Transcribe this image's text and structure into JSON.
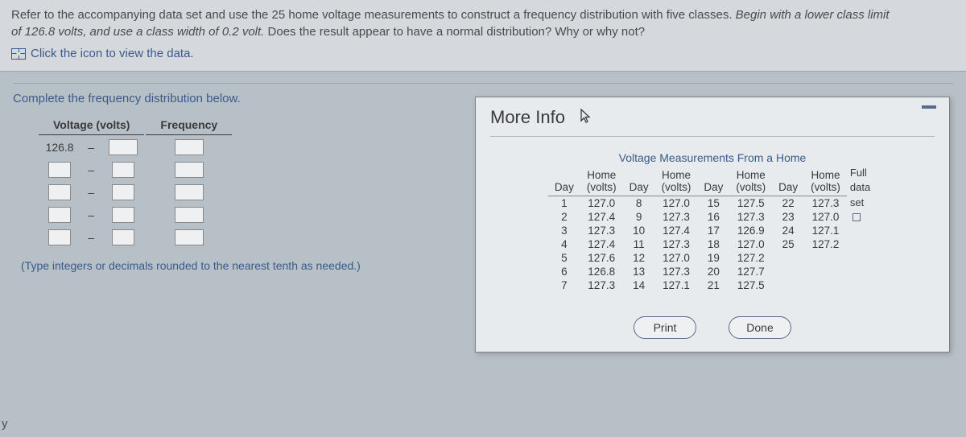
{
  "question": {
    "line1_a": "Refer to the accompanying data set and use the 25 home voltage measurements to construct a frequency distribution with five classes. ",
    "line1_italic": "Begin with a lower class limit",
    "line2_italic": "of 126.8 volts, and use a class width of 0.2 volt.",
    "line2_b": " Does the result appear to have a normal distribution? Why or why not?",
    "link_text": "Click the icon to view the data."
  },
  "section": {
    "title": "Complete the frequency distribution below.",
    "col1": "Voltage (volts)",
    "col2": "Frequency",
    "first_lower": "126.8",
    "dash": "–",
    "hint": "(Type integers or decimals rounded to the nearest tenth as needed.)"
  },
  "dialog": {
    "title": "More Info",
    "caption": "Voltage Measurements From a Home",
    "head_day": "Day",
    "head_volts_html": "Home\n(volts)",
    "side_full": "Full",
    "side_data": "data",
    "side_set": "set",
    "rows": [
      {
        "d1": "1",
        "v1": "127.0",
        "d2": "8",
        "v2": "127.0",
        "d3": "15",
        "v3": "127.5",
        "d4": "22",
        "v4": "127.3"
      },
      {
        "d1": "2",
        "v1": "127.4",
        "d2": "9",
        "v2": "127.3",
        "d3": "16",
        "v3": "127.3",
        "d4": "23",
        "v4": "127.0"
      },
      {
        "d1": "3",
        "v1": "127.3",
        "d2": "10",
        "v2": "127.4",
        "d3": "17",
        "v3": "126.9",
        "d4": "24",
        "v4": "127.1"
      },
      {
        "d1": "4",
        "v1": "127.4",
        "d2": "11",
        "v2": "127.3",
        "d3": "18",
        "v3": "127.0",
        "d4": "25",
        "v4": "127.2"
      },
      {
        "d1": "5",
        "v1": "127.6",
        "d2": "12",
        "v2": "127.0",
        "d3": "19",
        "v3": "127.2",
        "d4": "",
        "v4": ""
      },
      {
        "d1": "6",
        "v1": "126.8",
        "d2": "13",
        "v2": "127.3",
        "d3": "20",
        "v3": "127.7",
        "d4": "",
        "v4": ""
      },
      {
        "d1": "7",
        "v1": "127.3",
        "d2": "14",
        "v2": "127.1",
        "d3": "21",
        "v3": "127.5",
        "d4": "",
        "v4": ""
      }
    ],
    "print": "Print",
    "done": "Done"
  },
  "edge_y": "y",
  "colors": {
    "page_bg": "#b8c0c7",
    "header_bg": "#d5d9dd",
    "link": "#3a5a8a",
    "dialog_bg": "#e8ebee",
    "text": "#3a3a3a"
  }
}
